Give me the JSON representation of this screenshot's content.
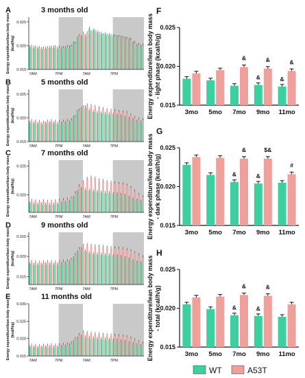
{
  "figure": {
    "left_xlabel": [
      "7AM",
      "7PM",
      "7AM",
      "7PM"
    ],
    "legend": {
      "wt": "WT",
      "a53t": "A53T"
    },
    "colors": {
      "wt": "#3ecfa0",
      "a53t": "#f0a09a",
      "dark": "#c9c9c9"
    }
  },
  "chart_data": [
    {
      "panel": "A",
      "type": "bar",
      "title": "3 months old",
      "ylabel": "Energy expenditure/lean body mass (kcal/h/g)",
      "yticks": [
        "0.015",
        "0.020",
        "0.025"
      ],
      "ylim": [
        0.015,
        0.026
      ],
      "series": [
        {
          "name": "WT",
          "values": [
            0.0196,
            0.0195,
            0.0194,
            0.0193,
            0.0194,
            0.0195,
            0.0196,
            0.0194,
            0.0193,
            0.0195,
            0.0196,
            0.0205,
            0.0215,
            0.0218,
            0.022,
            0.0235,
            0.0232,
            0.0228,
            0.0225,
            0.0224,
            0.0222,
            0.022,
            0.0218,
            0.0217,
            0.0215,
            0.0213,
            0.0205,
            0.02,
            0.0198
          ]
        },
        {
          "name": "A53T",
          "values": [
            0.0198,
            0.0196,
            0.0195,
            0.0194,
            0.0195,
            0.0196,
            0.0197,
            0.0196,
            0.0195,
            0.0197,
            0.0198,
            0.0204,
            0.022,
            0.0225,
            0.0226,
            0.0228,
            0.023,
            0.0225,
            0.0222,
            0.0221,
            0.022,
            0.0219,
            0.0218,
            0.0216,
            0.0214,
            0.0212,
            0.0206,
            0.0202,
            0.02
          ]
        }
      ]
    },
    {
      "panel": "B",
      "type": "bar",
      "title": "5 months old",
      "ylabel": "Energy expenditure/lean body mass (kcal/h/g)",
      "yticks": [
        "0.015",
        "0.020",
        "0.025"
      ],
      "ylim": [
        0.015,
        0.026
      ],
      "series": [
        {
          "name": "WT",
          "values": [
            0.0189,
            0.0188,
            0.0187,
            0.0186,
            0.0188,
            0.0189,
            0.0188,
            0.0187,
            0.0188,
            0.0189,
            0.019,
            0.02,
            0.0212,
            0.0218,
            0.0222,
            0.0215,
            0.0212,
            0.021,
            0.0209,
            0.0208,
            0.0207,
            0.0206,
            0.0204,
            0.0203,
            0.02,
            0.0198,
            0.0195,
            0.0192,
            0.019
          ]
        },
        {
          "name": "A53T",
          "values": [
            0.0193,
            0.0192,
            0.0191,
            0.019,
            0.0192,
            0.0193,
            0.0192,
            0.0191,
            0.0192,
            0.0193,
            0.0195,
            0.0202,
            0.0215,
            0.0222,
            0.0226,
            0.0225,
            0.0223,
            0.022,
            0.0218,
            0.0216,
            0.0215,
            0.0214,
            0.0212,
            0.0211,
            0.021,
            0.0205,
            0.02,
            0.0197,
            0.0195
          ]
        }
      ]
    },
    {
      "panel": "C",
      "type": "bar",
      "title": "7 months old",
      "ylabel": "Energy expenditure/lean body mass (kcal/h/g)",
      "yticks": [
        "0.020",
        "0.025"
      ],
      "ylim": [
        0.017,
        0.026
      ],
      "series": [
        {
          "name": "WT",
          "values": [
            0.0185,
            0.0184,
            0.0183,
            0.0184,
            0.0183,
            0.0182,
            0.0183,
            0.0184,
            0.0185,
            0.0186,
            0.0188,
            0.0195,
            0.0205,
            0.021,
            0.0208,
            0.0207,
            0.0206,
            0.0205,
            0.0204,
            0.0203,
            0.0203,
            0.0202,
            0.0201,
            0.02,
            0.0198,
            0.0195,
            0.0192,
            0.019,
            0.0188
          ]
        },
        {
          "name": "A53T",
          "values": [
            0.019,
            0.0189,
            0.0188,
            0.0189,
            0.0188,
            0.0188,
            0.0189,
            0.019,
            0.0191,
            0.0192,
            0.0194,
            0.0203,
            0.0215,
            0.0222,
            0.0228,
            0.023,
            0.0228,
            0.0225,
            0.0224,
            0.0222,
            0.0221,
            0.022,
            0.0219,
            0.0218,
            0.0216,
            0.0212,
            0.0206,
            0.02,
            0.0196
          ]
        }
      ]
    },
    {
      "panel": "D",
      "type": "bar",
      "title": "9 months old",
      "ylabel": "Energy expenditure/lean body mass (kcal/h/g)",
      "yticks": [
        "0.015",
        "0.020",
        "0.025"
      ],
      "ylim": [
        0.013,
        0.026
      ],
      "series": [
        {
          "name": "WT",
          "values": [
            0.018,
            0.0179,
            0.0178,
            0.0179,
            0.018,
            0.018,
            0.0179,
            0.018,
            0.0181,
            0.0182,
            0.0185,
            0.0195,
            0.021,
            0.0218,
            0.0212,
            0.0208,
            0.0206,
            0.0205,
            0.0204,
            0.0203,
            0.0202,
            0.0201,
            0.02,
            0.0198,
            0.0195,
            0.0192,
            0.0188,
            0.0185,
            0.0183
          ]
        },
        {
          "name": "A53T",
          "values": [
            0.0186,
            0.0185,
            0.0184,
            0.0185,
            0.0186,
            0.0186,
            0.0185,
            0.0186,
            0.0187,
            0.0188,
            0.0191,
            0.0203,
            0.0218,
            0.0226,
            0.0228,
            0.0226,
            0.0225,
            0.0224,
            0.0223,
            0.0222,
            0.0221,
            0.022,
            0.0219,
            0.0218,
            0.0216,
            0.0213,
            0.0208,
            0.0203,
            0.0198
          ]
        }
      ]
    },
    {
      "panel": "E",
      "type": "bar",
      "title": "11 months old",
      "ylabel": "Energy expenditure/lean body mass (kcal/h/g)",
      "yticks": [
        "0.015",
        "0.020",
        "0.025",
        "0.030"
      ],
      "ylim": [
        0.015,
        0.03
      ],
      "series": [
        {
          "name": "WT",
          "values": [
            0.0175,
            0.0174,
            0.0173,
            0.0174,
            0.0175,
            0.0175,
            0.0174,
            0.0175,
            0.0176,
            0.0177,
            0.018,
            0.019,
            0.02,
            0.0205,
            0.0203,
            0.0201,
            0.02,
            0.0199,
            0.0198,
            0.0197,
            0.0196,
            0.0195,
            0.0194,
            0.0192,
            0.019,
            0.0187,
            0.0184,
            0.0181,
            0.0179
          ]
        },
        {
          "name": "A53T",
          "values": [
            0.018,
            0.0179,
            0.0178,
            0.0179,
            0.018,
            0.0181,
            0.018,
            0.0181,
            0.0182,
            0.0183,
            0.0186,
            0.0198,
            0.021,
            0.0218,
            0.0216,
            0.0214,
            0.0213,
            0.0212,
            0.0211,
            0.021,
            0.0209,
            0.0208,
            0.0207,
            0.0206,
            0.0204,
            0.02,
            0.0195,
            0.019,
            0.0186
          ]
        }
      ]
    },
    {
      "panel": "F",
      "type": "bar",
      "ylabel": "Energy expenditure/lean body mass - light phase (kcal/h/g)",
      "categories": [
        "3mo",
        "5mo",
        "7mo",
        "9mo",
        "11mo"
      ],
      "yticks": [
        "0.015",
        "0.020",
        "0.025"
      ],
      "ylim": [
        0.015,
        0.025
      ],
      "series": [
        {
          "name": "WT",
          "values": [
            0.0184,
            0.0182,
            0.0175,
            0.0176,
            0.0174
          ]
        },
        {
          "name": "A53T",
          "values": [
            0.0191,
            0.0195,
            0.0199,
            0.0197,
            0.0194
          ]
        }
      ],
      "annotations": [
        "",
        "",
        "&",
        "&",
        "&"
      ],
      "annotations_wt": [
        "",
        "",
        "",
        "&",
        "&"
      ]
    },
    {
      "panel": "G",
      "type": "bar",
      "ylabel": "Energy expenditure/lean body mass - dark phase (kcal/h/g)",
      "categories": [
        "3mo",
        "5mo",
        "7mo",
        "9mo",
        "11mo"
      ],
      "yticks": [
        "0.015",
        "0.020",
        "0.025"
      ],
      "ylim": [
        0.015,
        0.025
      ],
      "series": [
        {
          "name": "WT",
          "values": [
            0.0228,
            0.0215,
            0.0206,
            0.0204,
            0.0205
          ]
        },
        {
          "name": "A53T",
          "values": [
            0.0238,
            0.0237,
            0.0236,
            0.0236,
            0.0216
          ]
        }
      ],
      "annotations": [
        "",
        "",
        "&",
        "$&",
        "#"
      ],
      "annotations_wt": [
        "",
        "",
        "&",
        "&",
        ""
      ]
    },
    {
      "panel": "H",
      "type": "bar",
      "ylabel": "Energy expenditure/lean body mass - total (kcal/h/g)",
      "categories": [
        "3mo",
        "5mo",
        "7mo",
        "9mo",
        "11mo"
      ],
      "yticks": [
        "0.015",
        "0.020",
        "0.025"
      ],
      "ylim": [
        0.015,
        0.025
      ],
      "series": [
        {
          "name": "WT",
          "values": [
            0.0205,
            0.0199,
            0.0191,
            0.019,
            0.0189
          ]
        },
        {
          "name": "A53T",
          "values": [
            0.0214,
            0.0215,
            0.0217,
            0.0216,
            0.0205
          ]
        }
      ],
      "annotations": [
        "",
        "",
        "&",
        "&",
        ""
      ],
      "annotations_wt": [
        "",
        "",
        "&",
        "&",
        ""
      ]
    }
  ]
}
